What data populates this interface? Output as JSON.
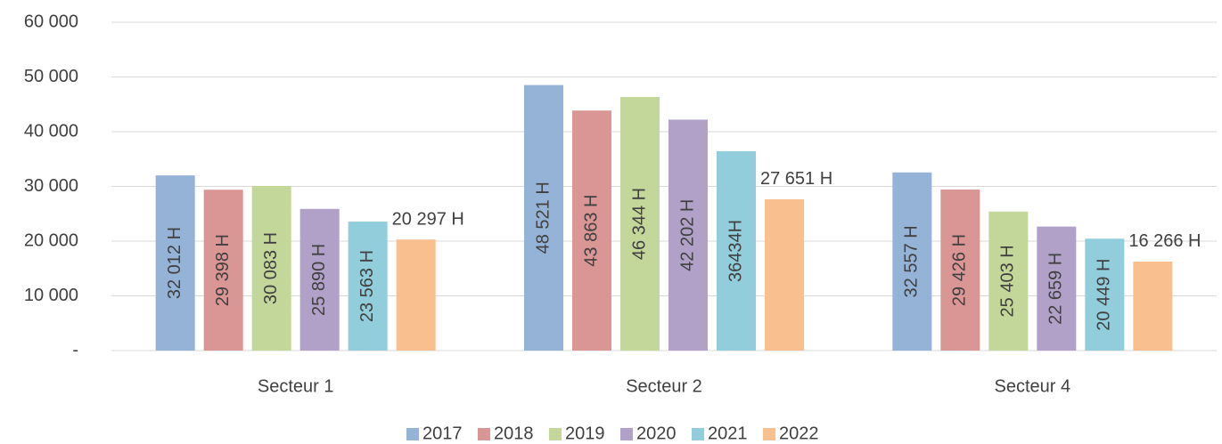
{
  "chart_data": {
    "type": "bar",
    "categories": [
      "Secteur 1",
      "Secteur 2",
      "Secteur 4"
    ],
    "series": [
      {
        "name": "2017",
        "color": "#95b3d7",
        "values": [
          32012,
          48521,
          32557
        ],
        "value_labels": [
          "32 012 H",
          "48 521 H",
          "32 557 H"
        ]
      },
      {
        "name": "2018",
        "color": "#da9694",
        "values": [
          29398,
          43863,
          29426
        ],
        "value_labels": [
          "29 398 H",
          "43 863 H",
          "29 426 H"
        ]
      },
      {
        "name": "2019",
        "color": "#c4d79b",
        "values": [
          30083,
          46344,
          25403
        ],
        "value_labels": [
          "30 083 H",
          "46 344 H",
          "25 403 H"
        ]
      },
      {
        "name": "2020",
        "color": "#b1a0c7",
        "values": [
          25890,
          42202,
          22659
        ],
        "value_labels": [
          "25 890 H",
          "42 202 H",
          "22 659 H"
        ]
      },
      {
        "name": "2021",
        "color": "#92cddc",
        "values": [
          23563,
          36434,
          20449
        ],
        "value_labels": [
          "23 563 H",
          "36434H",
          "20 449 H"
        ]
      },
      {
        "name": "2022",
        "color": "#fabf8f",
        "values": [
          20297,
          27651,
          16266
        ],
        "value_labels": [
          "20 297 H",
          "27 651 H",
          "16 266 H"
        ]
      }
    ],
    "ylim": [
      0,
      60000
    ],
    "yticks": [
      {
        "value": 0,
        "label": "-"
      },
      {
        "value": 10000,
        "label": "10 000"
      },
      {
        "value": 20000,
        "label": "20 000"
      },
      {
        "value": 30000,
        "label": "30 000"
      },
      {
        "value": 40000,
        "label": "40 000"
      },
      {
        "value": 50000,
        "label": "50 000"
      },
      {
        "value": 60000,
        "label": "60 000"
      }
    ],
    "grid": true,
    "legend": "bottom"
  }
}
